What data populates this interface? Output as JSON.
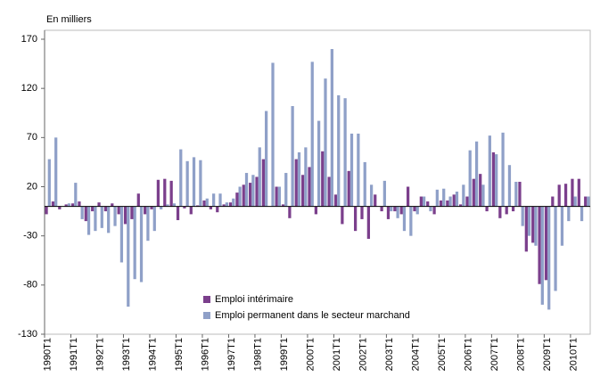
{
  "chart_data": {
    "type": "bar",
    "y_label": "En milliers",
    "categories": [
      "1990T1",
      null,
      null,
      null,
      "1991T1",
      null,
      null,
      null,
      "1992T1",
      null,
      null,
      null,
      "1993T1",
      null,
      null,
      null,
      "1994T1",
      null,
      null,
      null,
      "1995T1",
      null,
      null,
      null,
      "1996T1",
      null,
      null,
      null,
      "1997T1",
      null,
      null,
      null,
      "1998T1",
      null,
      null,
      null,
      "1999T1",
      null,
      null,
      null,
      "2000T1",
      null,
      null,
      null,
      "2001T1",
      null,
      null,
      null,
      "2002T1",
      null,
      null,
      null,
      "2003T1",
      null,
      null,
      null,
      "2004T1",
      null,
      null,
      null,
      "2005T1",
      null,
      null,
      null,
      "2006T1",
      null,
      null,
      null,
      "2007T1",
      null,
      null,
      null,
      "2008T1",
      null,
      null,
      null,
      "2009T1",
      null,
      null,
      null,
      "2010T1",
      null,
      null
    ],
    "series": [
      {
        "name": "Emploi intérimaire",
        "color": "#7b3f8c",
        "values": [
          -8,
          5,
          -3,
          2,
          3,
          5,
          -15,
          -5,
          4,
          -5,
          3,
          -8,
          -18,
          -13,
          13,
          -8,
          -3,
          27,
          28,
          26,
          -14,
          -2,
          -8,
          1,
          6,
          -3,
          -6,
          2,
          4,
          14,
          22,
          24,
          30,
          48,
          0,
          20,
          2,
          -12,
          48,
          32,
          40,
          -8,
          56,
          30,
          12,
          -18,
          36,
          -25,
          -13,
          -33,
          12,
          -5,
          -13,
          -5,
          -8,
          20,
          -5,
          10,
          5,
          -8,
          6,
          6,
          12,
          2,
          10,
          28,
          33,
          -5,
          55,
          -12,
          -8,
          -5,
          25,
          -46,
          -37,
          -79,
          -75,
          10,
          22,
          23,
          28,
          28,
          10
        ]
      },
      {
        "name": "Emploi permanent dans le secteur marchand",
        "color": "#8fa0c8",
        "values": [
          48,
          70,
          0,
          3,
          24,
          -13,
          -29,
          -25,
          -22,
          -27,
          -20,
          -57,
          -102,
          -74,
          -77,
          -35,
          -25,
          -3,
          2,
          3,
          58,
          46,
          50,
          47,
          8,
          13,
          13,
          4,
          8,
          20,
          34,
          32,
          60,
          97,
          146,
          20,
          34,
          102,
          55,
          60,
          147,
          87,
          130,
          160,
          113,
          110,
          74,
          74,
          45,
          22,
          0,
          26,
          -5,
          -12,
          -25,
          -30,
          -8,
          10,
          -5,
          17,
          18,
          10,
          15,
          22,
          57,
          66,
          22,
          72,
          53,
          75,
          42,
          25,
          -20,
          -30,
          -40,
          -100,
          -105,
          -86,
          -40,
          -15,
          10,
          -15,
          10
        ]
      }
    ],
    "ylim": [
      -130,
      170
    ],
    "yticks": [
      -130,
      -80,
      -30,
      20,
      70,
      120,
      170
    ],
    "grid": false,
    "legend": "bottom-left"
  }
}
